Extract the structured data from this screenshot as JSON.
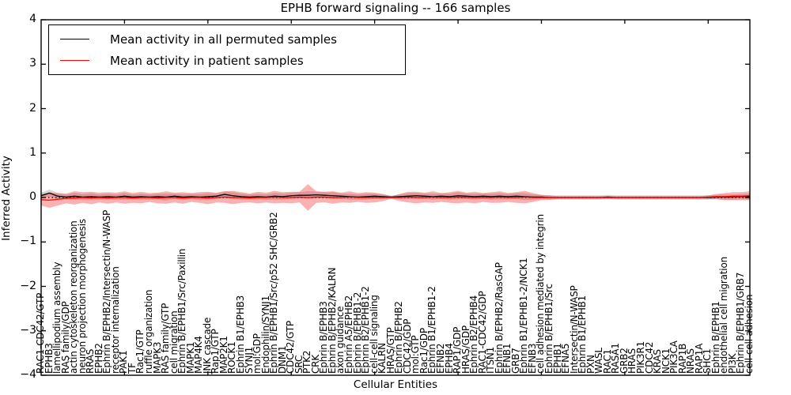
{
  "chart_data": {
    "type": "line",
    "title": "EPHB forward signaling -- 166 samples",
    "xlabel": "Cellular Entities",
    "ylabel": "Inferred Activity",
    "ylim": [
      -4,
      4
    ],
    "ytick_values": [
      -4,
      -3,
      -2,
      -1,
      0,
      1,
      2,
      3,
      4
    ],
    "ytick_labels": [
      "−4",
      "−3",
      "−2",
      "−1",
      "0",
      "1",
      "2",
      "3",
      "4"
    ],
    "xtick_major_every": 10,
    "grid": false,
    "legend_position": "upper left",
    "legend": [
      {
        "label": "Mean activity in all permuted samples",
        "color": "#000000"
      },
      {
        "label": "Mean activity in patient samples",
        "color": "#ff0000"
      }
    ],
    "zero_line": {
      "value": 0,
      "style": "dotted",
      "color": "#000000"
    },
    "categories": [
      "RAC1-CDC42/GTP",
      "EPHB3",
      "lamellipodium assembly",
      "RAS family/GDP",
      "actin cytoskeleton reorganization",
      "neuron projection morphogenesis",
      "RRAS",
      "EPHB2",
      "Ephrin B/EPHB2/Intersectin/N-WASP",
      "receptor internalization",
      "PAK1",
      "TF",
      "Rac1/GTP",
      "ruffle organization",
      "MAPK3",
      "RAS family/GTP",
      "cell migration",
      "Ephrin B/EPHB1/Src/Paxillin",
      "MAPK1",
      "MAP4K4",
      "JNK cascade",
      "Rap1/GTP",
      "MAP2K1",
      "ROCK1",
      "Ephrin B1/EPHB3",
      "SYNJ1",
      "mol:GDP",
      "Endophilin/SYNJ1",
      "Ephrin B/EPHB1/Src/p52 SHC/GRB2",
      "DNM1",
      "CDC42/GTP",
      "SRC",
      "PTK2",
      "CRK",
      "Ephrin B/EPHB3",
      "Ephrin B/EPHB2/KALRN",
      "axon guidance",
      "Ephrin A5/EPHB2",
      "Ephrin B/EPHB1-2",
      "Ephrin B2/EPHB1-2",
      "cell-cell signaling",
      "KALRN",
      "HRAS/GTP",
      "Ephrin B/EPHB2",
      "CDC42/GDP",
      "mol:GTP",
      "Rac1/GDP",
      "Ephrin B1/EPHB1-2",
      "EFNB2",
      "EPHB4",
      "RAP1/GDP",
      "HRAS/GDP",
      "Ephrin B2/EPHB4",
      "RAC1-CDC42/GDP",
      "ITSN1",
      "Ephrin B/EPHB2/RasGAP",
      "EFNB1",
      "GRB7",
      "Ephrin B1/EPHB1-2/NCK1",
      "EFNB3",
      "cell adhesion mediated by integrin",
      "Ephrin B/EPHB1/Src",
      "EPHB1",
      "EFNA5",
      "Intersectin/N-WASP",
      "Ephrin B1/EPHB1",
      "PXN",
      "WASL",
      "RAC1",
      "RASA1",
      "GRB2",
      "HRAS",
      "PIK3R1",
      "CDC42",
      "KRAS",
      "NCK1",
      "PIK3CA",
      "RAP1B",
      "NRAS",
      "RAP1A",
      "SHC1",
      "Ephrin B/EPHB1",
      "endothelial cell migration",
      "PI3K",
      "Ephrin B/EPHB1/GRB7",
      "cell-cell adhesion"
    ],
    "series": [
      {
        "name": "Mean activity in all permuted samples",
        "color": "#000000",
        "band_color": "#999999",
        "band_opacity": 0.4,
        "values": [
          0.04,
          0.1,
          0.03,
          0.01,
          0.03,
          0.01,
          0.02,
          0.01,
          0.02,
          0.01,
          0.03,
          0.01,
          0.02,
          0.01,
          0.02,
          0.01,
          0.03,
          0.01,
          0.02,
          0.01,
          0.02,
          0.03,
          0.07,
          0.04,
          0.02,
          0.01,
          0.02,
          0.01,
          0.03,
          0.02,
          0.04,
          0.05,
          0.05,
          0.06,
          0.05,
          0.04,
          0.03,
          0.02,
          0.01,
          0.02,
          0.03,
          0.02,
          0.01,
          0.02,
          0.03,
          0.04,
          0.03,
          0.02,
          0.03,
          0.02,
          0.04,
          0.03,
          0.02,
          0.03,
          0.02,
          0.03,
          0.02,
          0.03,
          0.02,
          0.01,
          0.01,
          0.0,
          0.0,
          0.0,
          0.0,
          0.0,
          0.0,
          0.0,
          0.01,
          0.0,
          0.0,
          0.0,
          0.0,
          0.0,
          0.0,
          0.0,
          0.0,
          0.0,
          0.0,
          0.0,
          0.0,
          0.01,
          0.01,
          0.01,
          0.02,
          0.02
        ],
        "band_half_widths": [
          0.07,
          0.08,
          0.07,
          0.06,
          0.08,
          0.07,
          0.08,
          0.06,
          0.07,
          0.06,
          0.08,
          0.06,
          0.07,
          0.06,
          0.07,
          0.08,
          0.06,
          0.07,
          0.06,
          0.07,
          0.08,
          0.06,
          0.07,
          0.08,
          0.07,
          0.06,
          0.07,
          0.06,
          0.08,
          0.07,
          0.07,
          0.07,
          0.09,
          0.07,
          0.07,
          0.08,
          0.06,
          0.07,
          0.06,
          0.07,
          0.06,
          0.05,
          0.03,
          0.05,
          0.07,
          0.07,
          0.06,
          0.07,
          0.06,
          0.07,
          0.08,
          0.06,
          0.07,
          0.06,
          0.07,
          0.07,
          0.06,
          0.07,
          0.08,
          0.06,
          0.05,
          0.05,
          0.05,
          0.05,
          0.05,
          0.05,
          0.05,
          0.05,
          0.05,
          0.05,
          0.05,
          0.05,
          0.05,
          0.05,
          0.05,
          0.05,
          0.05,
          0.05,
          0.05,
          0.05,
          0.05,
          0.05,
          0.06,
          0.06,
          0.06,
          0.07
        ]
      },
      {
        "name": "Mean activity in patient samples",
        "color": "#ff0000",
        "band_color": "#ee3333",
        "band_opacity": 0.38,
        "values": [
          -0.05,
          -0.06,
          -0.04,
          -0.02,
          -0.01,
          0.0,
          -0.01,
          0.0,
          -0.01,
          0.0,
          0.0,
          -0.01,
          0.0,
          0.0,
          -0.01,
          0.0,
          0.0,
          -0.01,
          0.0,
          0.0,
          -0.01,
          0.0,
          0.01,
          0.0,
          0.0,
          -0.01,
          0.0,
          0.0,
          0.01,
          0.0,
          0.0,
          0.01,
          0.0,
          0.01,
          0.01,
          0.0,
          0.0,
          0.01,
          0.0,
          0.0,
          0.0,
          0.0,
          0.0,
          0.0,
          0.01,
          0.0,
          0.0,
          0.01,
          0.0,
          0.0,
          0.01,
          0.0,
          0.0,
          0.0,
          0.0,
          0.01,
          0.0,
          0.0,
          0.01,
          0.0,
          0.0,
          0.0,
          0.0,
          0.0,
          0.0,
          0.0,
          0.0,
          0.0,
          0.0,
          0.0,
          0.0,
          0.0,
          0.0,
          0.0,
          0.0,
          0.0,
          0.0,
          0.0,
          0.0,
          0.0,
          0.01,
          0.02,
          0.02,
          0.03,
          0.03,
          0.04
        ],
        "band_half_widths": [
          0.13,
          0.17,
          0.14,
          0.11,
          0.15,
          0.12,
          0.14,
          0.11,
          0.13,
          0.11,
          0.14,
          0.11,
          0.13,
          0.1,
          0.12,
          0.14,
          0.11,
          0.13,
          0.1,
          0.12,
          0.14,
          0.11,
          0.13,
          0.15,
          0.12,
          0.1,
          0.13,
          0.11,
          0.14,
          0.12,
          0.13,
          0.12,
          0.3,
          0.13,
          0.12,
          0.14,
          0.11,
          0.13,
          0.1,
          0.12,
          0.11,
          0.08,
          0.03,
          0.08,
          0.12,
          0.13,
          0.11,
          0.13,
          0.1,
          0.12,
          0.14,
          0.11,
          0.13,
          0.1,
          0.12,
          0.13,
          0.1,
          0.12,
          0.14,
          0.1,
          0.06,
          0.05,
          0.03,
          0.03,
          0.03,
          0.03,
          0.03,
          0.03,
          0.03,
          0.03,
          0.03,
          0.03,
          0.03,
          0.03,
          0.03,
          0.03,
          0.03,
          0.03,
          0.03,
          0.03,
          0.04,
          0.06,
          0.08,
          0.09,
          0.09,
          0.1
        ]
      }
    ]
  }
}
